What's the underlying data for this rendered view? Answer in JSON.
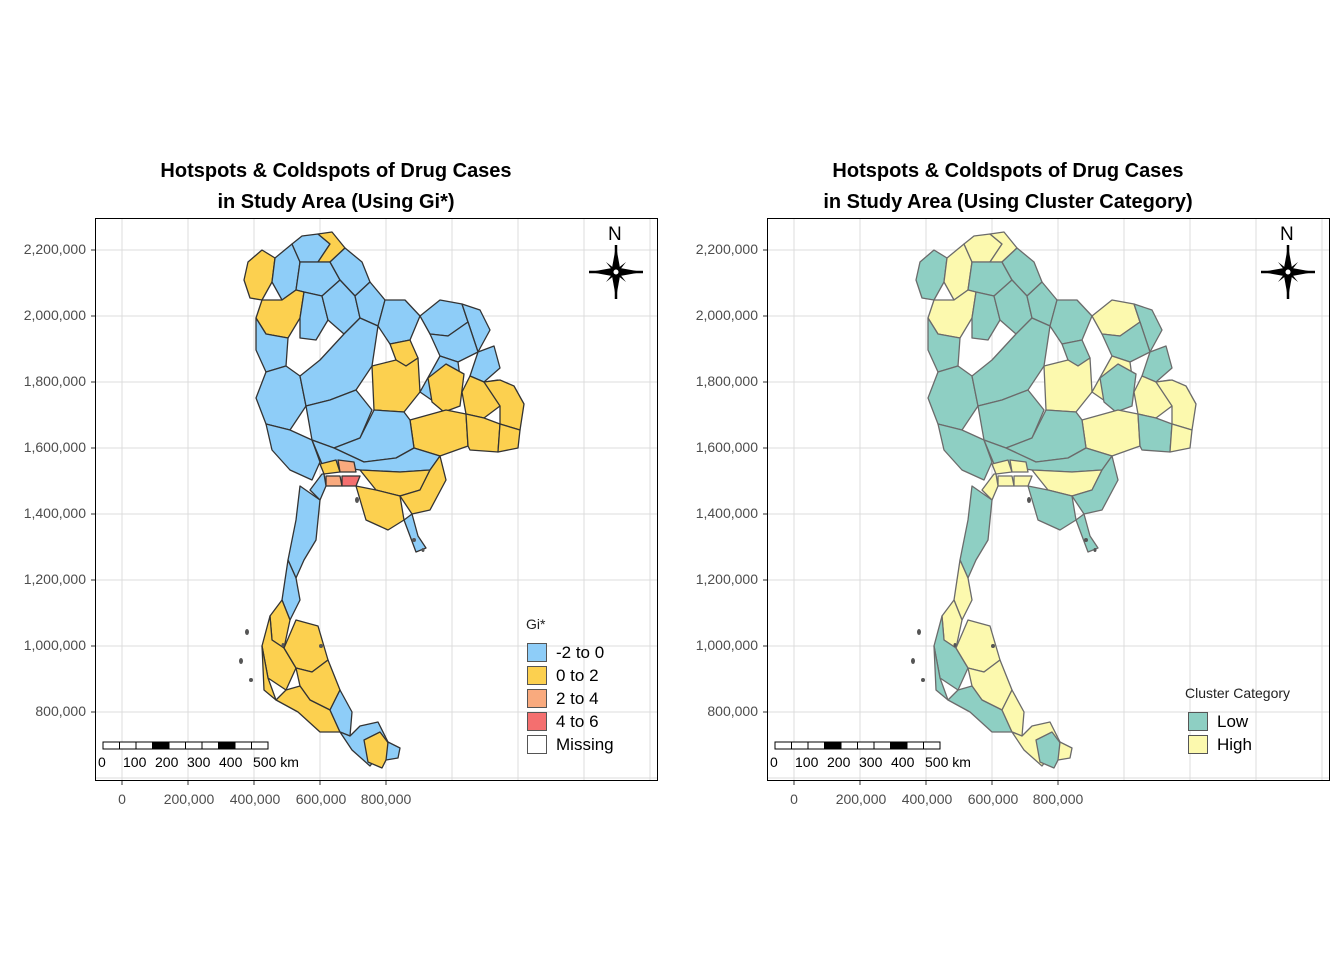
{
  "panels": [
    {
      "title_line1": "Hotspots & Coldspots of Drug Cases",
      "title_line2": "in Study Area (Using Gi*)",
      "legend_title": "Gi*",
      "legend": [
        {
          "label": "-2 to 0",
          "color": "#8ecdf8"
        },
        {
          "label": "0 to 2",
          "color": "#fcd04f"
        },
        {
          "label": "2 to 4",
          "color": "#f9aa7e"
        },
        {
          "label": "4 to 6",
          "color": "#f46f6f"
        },
        {
          "label": "Missing",
          "color": "#ffffff"
        }
      ],
      "map_colors": {
        "primary": "#8ecdf8",
        "secondary": "#fcd04f",
        "hot1": "#f9aa7e",
        "hot2": "#f46f6f",
        "stroke": "#333333"
      }
    },
    {
      "title_line1": "Hotspots & Coldspots of Drug Cases",
      "title_line2": "in Study Area (Using Cluster Category)",
      "legend_title": "Cluster Category",
      "legend": [
        {
          "label": "Low",
          "color": "#8ecfc3"
        },
        {
          "label": "High",
          "color": "#fcf9ae"
        }
      ],
      "map_colors": {
        "primary": "#8ecfc3",
        "secondary": "#fcf9ae",
        "hot1": "#fcf9ae",
        "hot2": "#fcf9ae",
        "stroke": "#6b6b6b"
      }
    }
  ],
  "y_ticks": [
    "2,200,000",
    "2,000,000",
    "1,800,000",
    "1,600,000",
    "1,400,000",
    "1,200,000",
    "1,000,000",
    "800,000"
  ],
  "x_ticks": [
    "0",
    "200,000",
    "400,000",
    "600,000",
    "800,000"
  ],
  "scale_bar": {
    "labels": [
      "0",
      "100",
      "200",
      "300",
      "400",
      "500 km"
    ]
  },
  "north_label": "N",
  "north_icon": "compass-rose-icon"
}
